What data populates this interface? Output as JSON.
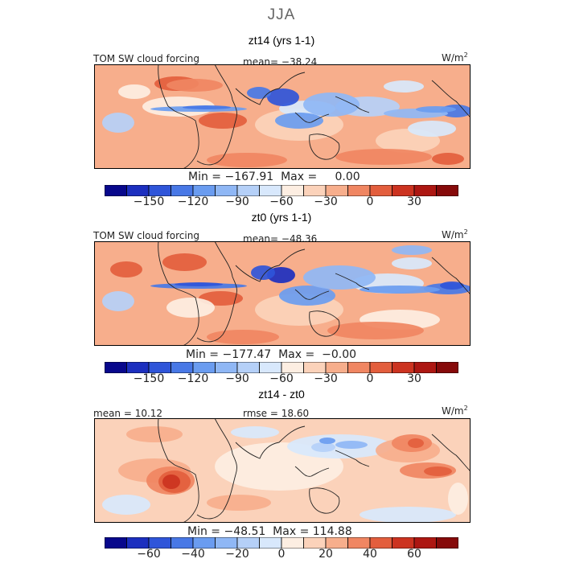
{
  "suptitle": "JJA",
  "chart_data": [
    {
      "type": "heatmap",
      "title": "zt14 (yrs 1-1)",
      "left_label": "TOM SW cloud forcing",
      "stat_label": "mean= −38.24",
      "units_base": "W/m",
      "units_exp": "2",
      "minmax": "Min = −167.91  Max =     0.00",
      "colorbar": {
        "levels": [
          -180,
          -165,
          -150,
          -135,
          -120,
          -105,
          -90,
          -75,
          -60,
          -45,
          -30,
          -15,
          0,
          15,
          30,
          45,
          60
        ],
        "tick_labels": [
          "−150",
          "−120",
          "−90",
          "−60",
          "−30",
          "0",
          "30"
        ],
        "tick_values": [
          -150,
          -120,
          -90,
          -60,
          -30,
          0,
          30
        ]
      },
      "colors": [
        "#08088c",
        "#1c2fbf",
        "#2f55d9",
        "#4878e6",
        "#6a9cf0",
        "#8fb7f5",
        "#b5d0f8",
        "#d8e8fc",
        "#fdeee2",
        "#fbd2ba",
        "#f7ae8c",
        "#f08662",
        "#e35e3d",
        "#cc3320",
        "#ad1712",
        "#860a0a"
      ]
    },
    {
      "type": "heatmap",
      "title": "zt0 (yrs 1-1)",
      "left_label": "TOM SW cloud forcing",
      "stat_label": "mean= −48.36",
      "units_base": "W/m",
      "units_exp": "2",
      "minmax": "Min = −177.47  Max =  −0.00",
      "colorbar": {
        "levels": [
          -180,
          -165,
          -150,
          -135,
          -120,
          -105,
          -90,
          -75,
          -60,
          -45,
          -30,
          -15,
          0,
          15,
          30,
          45,
          60
        ],
        "tick_labels": [
          "−150",
          "−120",
          "−90",
          "−60",
          "−30",
          "0",
          "30"
        ],
        "tick_values": [
          -150,
          -120,
          -90,
          -60,
          -30,
          0,
          30
        ]
      },
      "colors": [
        "#08088c",
        "#1c2fbf",
        "#2f55d9",
        "#4878e6",
        "#6a9cf0",
        "#8fb7f5",
        "#b5d0f8",
        "#d8e8fc",
        "#fdeee2",
        "#fbd2ba",
        "#f7ae8c",
        "#f08662",
        "#e35e3d",
        "#cc3320",
        "#ad1712",
        "#860a0a"
      ]
    },
    {
      "type": "heatmap",
      "title": "zt14 - zt0",
      "left_label": "mean =  10.12",
      "stat_label": "rmse =  18.60",
      "units_base": "W/m",
      "units_exp": "2",
      "minmax": "Min = −48.51  Max = 114.88",
      "colorbar": {
        "levels": [
          -80,
          -70,
          -60,
          -50,
          -40,
          -30,
          -20,
          -10,
          0,
          10,
          20,
          30,
          40,
          50,
          60,
          70,
          80
        ],
        "tick_labels": [
          "−60",
          "−40",
          "−20",
          "0",
          "20",
          "40",
          "60"
        ],
        "tick_values": [
          -60,
          -40,
          -20,
          0,
          20,
          40,
          60
        ]
      },
      "colors": [
        "#08088c",
        "#1c2fbf",
        "#2f55d9",
        "#4878e6",
        "#6a9cf0",
        "#8fb7f5",
        "#b5d0f8",
        "#d8e8fc",
        "#fdeee2",
        "#fbd2ba",
        "#f7ae8c",
        "#f08662",
        "#e35e3d",
        "#cc3320",
        "#ad1712",
        "#860a0a"
      ]
    }
  ]
}
